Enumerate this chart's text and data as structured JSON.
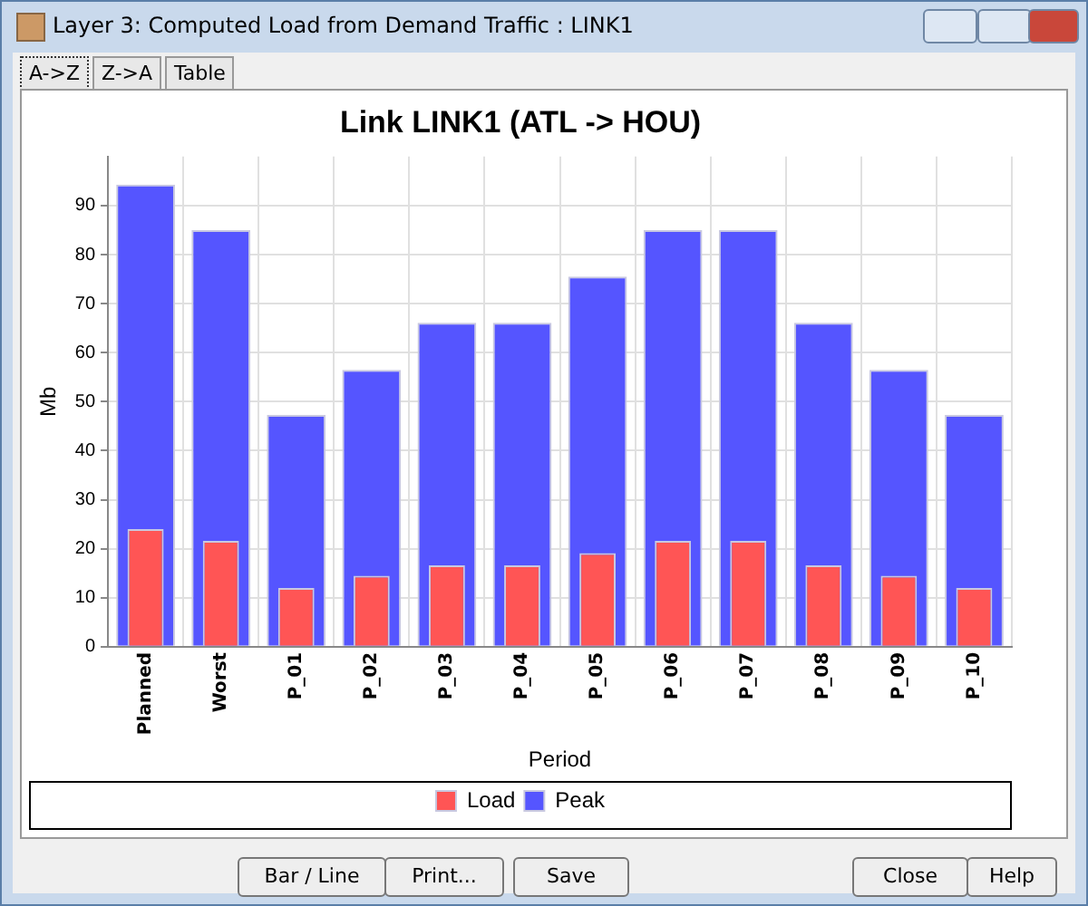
{
  "chart_data": {
    "type": "bar",
    "title": "Link LINK1 (ATL -> HOU)",
    "xlabel": "Period",
    "ylabel": "Mb",
    "categories": [
      "Planned",
      "Worst",
      "P_01",
      "P_02",
      "P_03",
      "P_04",
      "P_05",
      "P_06",
      "P_07",
      "P_08",
      "P_09",
      "P_10"
    ],
    "series": [
      {
        "name": "Load",
        "color": "#ff5555",
        "values": [
          24.0,
          21.6,
          12.0,
          14.5,
          16.6,
          16.6,
          19.1,
          21.6,
          21.6,
          16.6,
          14.5,
          12.0
        ]
      },
      {
        "name": "Peak",
        "color": "#5555ff",
        "values": [
          94.3,
          85.0,
          47.3,
          56.5,
          66.1,
          66.1,
          75.5,
          85.0,
          85.0,
          66.1,
          56.5,
          47.3
        ]
      }
    ],
    "ylim": [
      0,
      100
    ],
    "yticks": [
      0,
      10,
      20,
      30,
      40,
      50,
      60,
      70,
      80,
      90
    ],
    "grid": true,
    "legend": "bottom",
    "annotations": [
      "Layer 3: Computed Load from Demand Traffic : LINK1",
      "A->Z",
      "Z->A",
      "Table",
      "Bar / Line",
      "Print...",
      "Save",
      "Close",
      "Help"
    ]
  }
}
